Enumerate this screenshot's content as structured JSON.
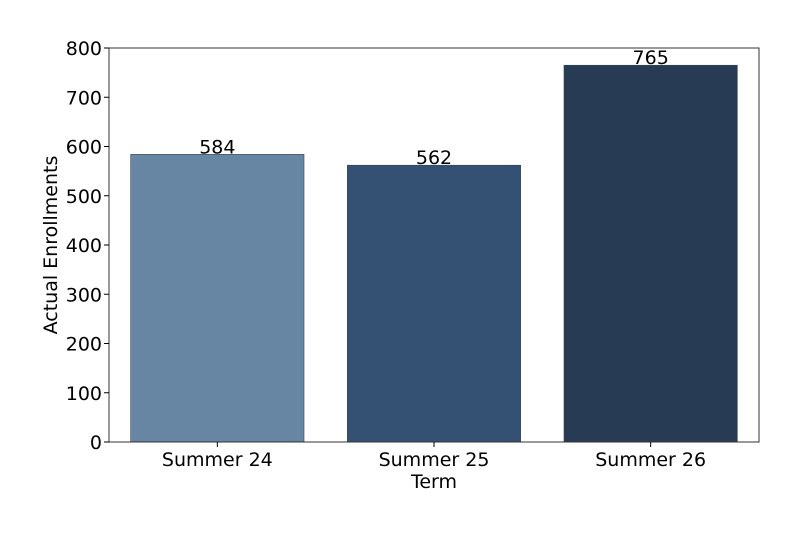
{
  "chart_data": {
    "type": "bar",
    "title": "",
    "xlabel": "Term",
    "ylabel": "Actual Enrollments",
    "categories": [
      "Summer 24",
      "Summer 25",
      "Summer 26"
    ],
    "values": [
      584,
      562,
      765
    ],
    "data_labels": [
      "584",
      "562",
      "765"
    ],
    "bar_colors": [
      "#6686a3",
      "#345174",
      "#283b55"
    ],
    "ylim": [
      0,
      800
    ],
    "yticks": [
      0,
      100,
      200,
      300,
      400,
      500,
      600,
      700,
      800
    ],
    "ytick_labels": [
      "0",
      "100",
      "200",
      "300",
      "400",
      "500",
      "600",
      "700",
      "800"
    ],
    "grid": false,
    "legend": "none"
  }
}
